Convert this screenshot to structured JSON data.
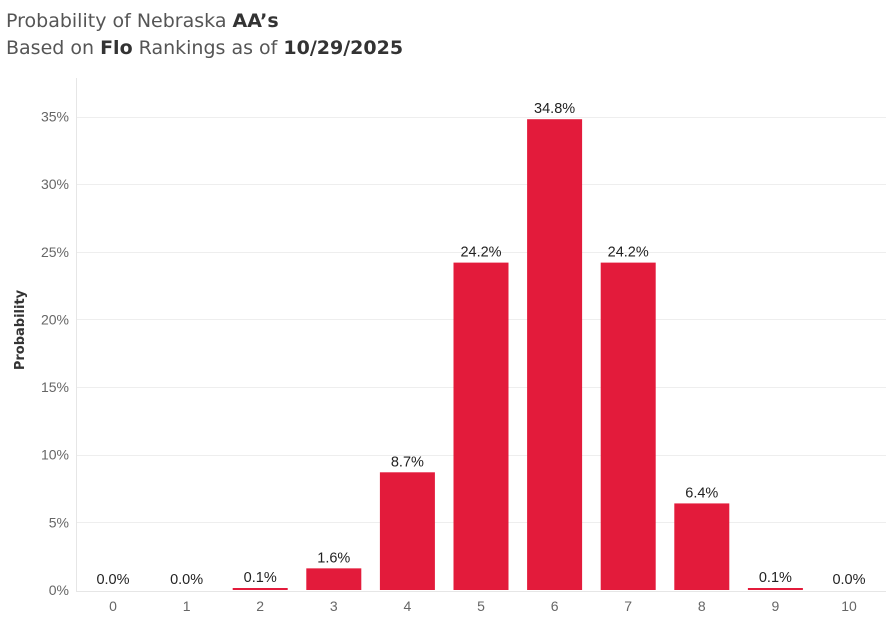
{
  "title": {
    "line1_prefix": "Probability of Nebraska ",
    "line1_bold": "AA’s",
    "line2_prefix": "Based on ",
    "line2_bold1": "Flo",
    "line2_mid": " Rankings as of ",
    "line2_bold2": "10/29/2025"
  },
  "chart_data": {
    "type": "bar",
    "categories": [
      "0",
      "1",
      "2",
      "3",
      "4",
      "5",
      "6",
      "7",
      "8",
      "9",
      "10"
    ],
    "values": [
      0.0,
      0.0,
      0.1,
      1.6,
      8.7,
      24.2,
      34.8,
      24.2,
      6.4,
      0.1,
      0.0
    ],
    "data_labels": [
      "0.0%",
      "0.0%",
      "0.1%",
      "1.6%",
      "8.7%",
      "24.2%",
      "34.8%",
      "24.2%",
      "6.4%",
      "0.1%",
      "0.0%"
    ],
    "xlabel": "",
    "ylabel": "Probability",
    "ylim": [
      0,
      37
    ],
    "yticks": [
      0,
      5,
      10,
      15,
      20,
      25,
      30,
      35
    ],
    "ytick_labels": [
      "0%",
      "5%",
      "10%",
      "15%",
      "20%",
      "25%",
      "30%",
      "35%"
    ],
    "grid": true,
    "bar_color": "#E31B3B",
    "gridline_color": "#EEEEEE"
  }
}
